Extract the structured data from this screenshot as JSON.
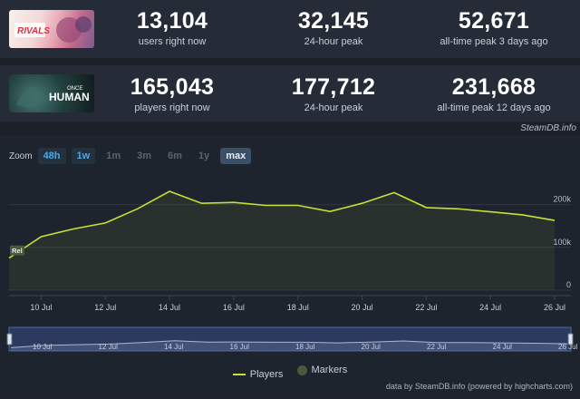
{
  "games": [
    {
      "thumb_icon": "marvel-rivals-logo",
      "stats": [
        {
          "value": "13,104",
          "label": "users right now"
        },
        {
          "value": "32,145",
          "label": "24-hour peak"
        },
        {
          "value": "52,671",
          "label": "all-time peak 3 days ago"
        }
      ]
    },
    {
      "thumb_icon": "once-human-logo",
      "stats": [
        {
          "value": "165,043",
          "label": "players right now"
        },
        {
          "value": "177,712",
          "label": "24-hour peak"
        },
        {
          "value": "231,668",
          "label": "all-time peak 12 days ago"
        }
      ]
    }
  ],
  "logo_text": {
    "game1": "RIVALS",
    "game2_top": "ONCE",
    "game2_bottom": "HUMAN"
  },
  "source_label": "SteamDB.info",
  "zoom": {
    "label": "Zoom",
    "buttons": [
      {
        "label": "48h",
        "state": "blue"
      },
      {
        "label": "1w",
        "state": "blue"
      },
      {
        "label": "1m",
        "state": "disabled"
      },
      {
        "label": "3m",
        "state": "disabled"
      },
      {
        "label": "6m",
        "state": "disabled"
      },
      {
        "label": "1y",
        "state": "disabled"
      },
      {
        "label": "max",
        "state": "active"
      }
    ]
  },
  "chart_data": {
    "type": "area",
    "x_ticks": [
      "10 Jul",
      "12 Jul",
      "14 Jul",
      "16 Jul",
      "18 Jul",
      "20 Jul",
      "22 Jul",
      "24 Jul",
      "26 Jul"
    ],
    "y_ticks": [
      "0",
      "100k",
      "200k"
    ],
    "ylim": [
      0,
      250000
    ],
    "x": [
      "9 Jul",
      "10 Jul",
      "11 Jul",
      "12 Jul",
      "13 Jul",
      "14 Jul",
      "15 Jul",
      "16 Jul",
      "17 Jul",
      "18 Jul",
      "19 Jul",
      "20 Jul",
      "21 Jul",
      "22 Jul",
      "23 Jul",
      "24 Jul",
      "25 Jul",
      "26 Jul"
    ],
    "series": [
      {
        "name": "Players",
        "color": "#c6e033",
        "values": [
          75000,
          125000,
          143000,
          157000,
          190000,
          231000,
          203000,
          205000,
          198000,
          198000,
          184000,
          203000,
          228000,
          193000,
          190000,
          183000,
          176000,
          163000
        ]
      }
    ],
    "marker_label": "Rel",
    "legend": [
      "Players",
      "Markers"
    ],
    "legend_position": "bottom-center",
    "navigator": {
      "x_ticks": [
        "10 Jul",
        "12 Jul",
        "14 Jul",
        "16 Jul",
        "18 Jul",
        "20 Jul",
        "22 Jul",
        "24 Jul",
        "26 Jul"
      ]
    }
  },
  "credit": "data by SteamDB.info (powered by highcharts.com)"
}
